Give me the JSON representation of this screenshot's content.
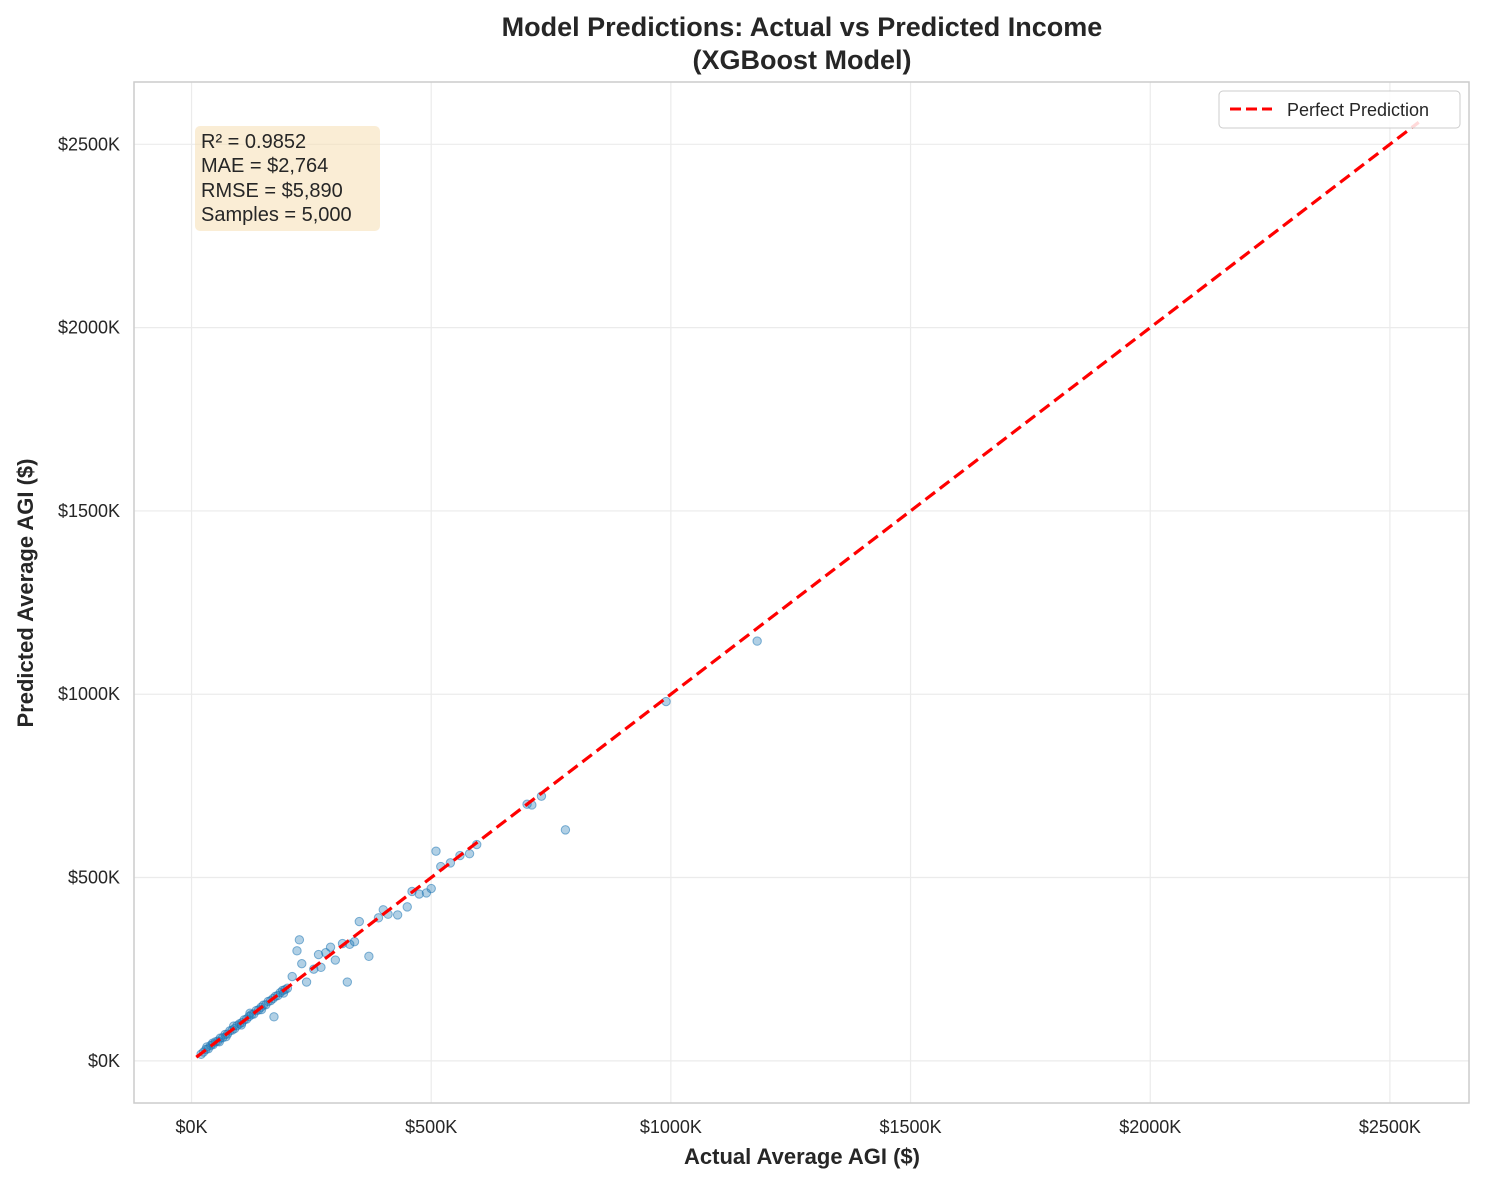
{
  "chart_data": {
    "type": "scatter",
    "title": "Model Predictions: Actual vs Predicted Income",
    "subtitle": "(XGBoost Model)",
    "xlabel": "Actual Average AGI ($)",
    "ylabel": "Predicted Average AGI ($)",
    "xlim": [
      -120000,
      2665000
    ],
    "ylim": [
      -115000,
      2670000
    ],
    "x_ticks": [
      0,
      500000,
      1000000,
      1500000,
      2000000,
      2500000
    ],
    "x_tick_labels": [
      "$0K",
      "$500K",
      "$1000K",
      "$1500K",
      "$2000K",
      "$2500K"
    ],
    "y_ticks": [
      0,
      500000,
      1000000,
      1500000,
      2000000,
      2500000
    ],
    "y_tick_labels": [
      "$0K",
      "$500K",
      "$1000K",
      "$1500K",
      "$2000K",
      "$2500K"
    ],
    "grid": true,
    "legend_position": "top-right",
    "stats_box": [
      "R² = 0.9852",
      "MAE = $2,764",
      "RMSE = $5,890",
      "Samples = 5,000"
    ],
    "colors": {
      "points": "#1f77b4",
      "reference_line": "#ff0000",
      "stats_box_fill": "#f5deb3",
      "grid": "#ebebeb",
      "frame": "#cccccc"
    },
    "series": [
      {
        "name": "Perfect Prediction",
        "kind": "line",
        "x": [
          10000,
          2560000
        ],
        "y": [
          10000,
          2560000
        ]
      },
      {
        "kind": "scatter",
        "x": [
          20000,
          25000,
          30000,
          35000,
          40000,
          45000,
          50000,
          55000,
          60000,
          65000,
          70000,
          75000,
          80000,
          85000,
          90000,
          95000,
          100000,
          105000,
          110000,
          115000,
          120000,
          125000,
          130000,
          135000,
          140000,
          145000,
          150000,
          155000,
          160000,
          165000,
          170000,
          175000,
          180000,
          185000,
          190000,
          195000,
          200000,
          32000,
          44000,
          58000,
          72000,
          88000,
          104000,
          122000,
          146000,
          172000,
          192000,
          210000,
          220000,
          225000,
          230000,
          240000,
          255000,
          265000,
          270000,
          280000,
          290000,
          300000,
          315000,
          325000,
          330000,
          340000,
          350000,
          370000,
          390000,
          400000,
          410000,
          430000,
          450000,
          460000,
          475000,
          490000,
          500000,
          510000,
          520000,
          540000,
          560000,
          580000,
          595000,
          700000,
          710000,
          730000,
          780000,
          990000,
          1180000
        ],
        "y": [
          18000,
          24000,
          31000,
          33000,
          42000,
          44000,
          52000,
          54000,
          62000,
          63000,
          72000,
          73000,
          82000,
          84000,
          88000,
          96000,
          101000,
          104000,
          112000,
          114000,
          121000,
          126000,
          128000,
          137000,
          139000,
          146000,
          152000,
          153000,
          162000,
          164000,
          170000,
          176000,
          178000,
          186000,
          192000,
          194000,
          198000,
          38000,
          48000,
          52000,
          66000,
          95000,
          98000,
          130000,
          140000,
          120000,
          185000,
          230000,
          300000,
          330000,
          265000,
          215000,
          250000,
          290000,
          255000,
          295000,
          310000,
          275000,
          320000,
          215000,
          318000,
          325000,
          380000,
          285000,
          390000,
          412000,
          400000,
          398000,
          420000,
          462000,
          455000,
          458000,
          470000,
          572000,
          530000,
          540000,
          560000,
          565000,
          590000,
          700000,
          698000,
          722000,
          630000,
          980000,
          1145000
        ]
      }
    ]
  }
}
